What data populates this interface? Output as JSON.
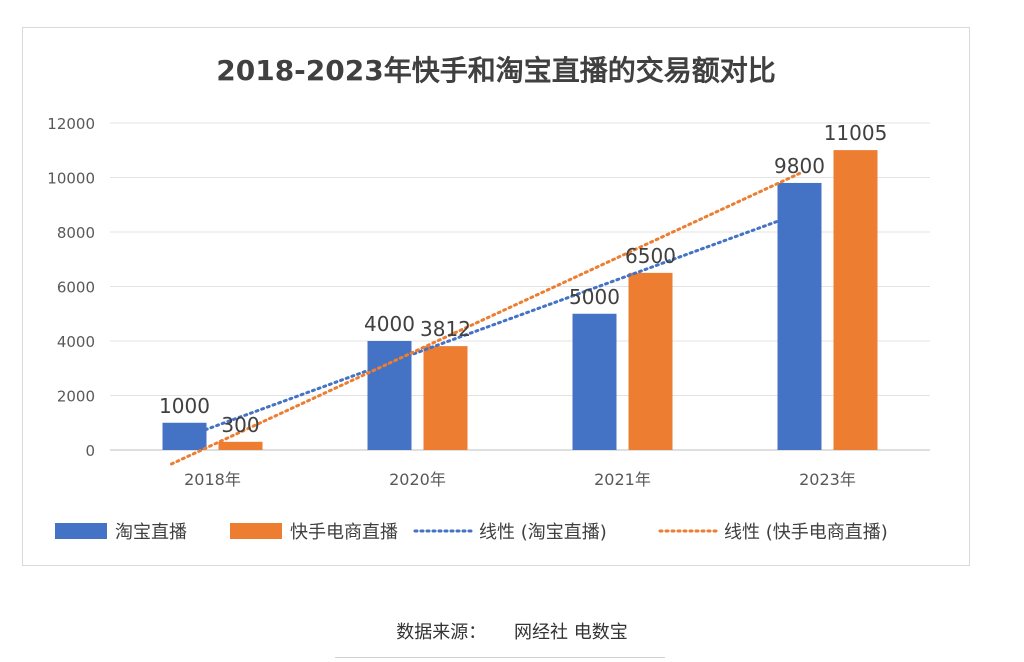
{
  "chart_data": {
    "type": "bar",
    "title": "2018-2023年快手和淘宝直播的交易额对比",
    "categories": [
      "2018年",
      "2020年",
      "2021年",
      "2023年"
    ],
    "series": [
      {
        "name": "淘宝直播",
        "values": [
          1000,
          4000,
          5000,
          9800
        ],
        "color": "#4472c4"
      },
      {
        "name": "快手电商直播",
        "values": [
          300,
          3812,
          6500,
          11005
        ],
        "color": "#ed7d31"
      }
    ],
    "trendlines": [
      {
        "name": "线性 (淘宝直播)",
        "type": "linear",
        "of": "淘宝直播",
        "color": "#4472c4",
        "style": "dotted"
      },
      {
        "name": "线性 (快手电商直播)",
        "type": "linear",
        "of": "快手电商直播",
        "color": "#ed7d31",
        "style": "dotted"
      }
    ],
    "data_labels": [
      [
        "1000",
        "300"
      ],
      [
        "4000",
        "3812"
      ],
      [
        "5000",
        "6500"
      ],
      [
        "9800",
        "11005"
      ]
    ],
    "ylim": [
      0,
      12000
    ],
    "yticks": [
      "0",
      "2000",
      "4000",
      "6000",
      "8000",
      "10000",
      "12000"
    ],
    "grid": true,
    "legend": "bottom"
  },
  "source": {
    "label": "数据来源：",
    "value": "网经社 电数宝"
  }
}
